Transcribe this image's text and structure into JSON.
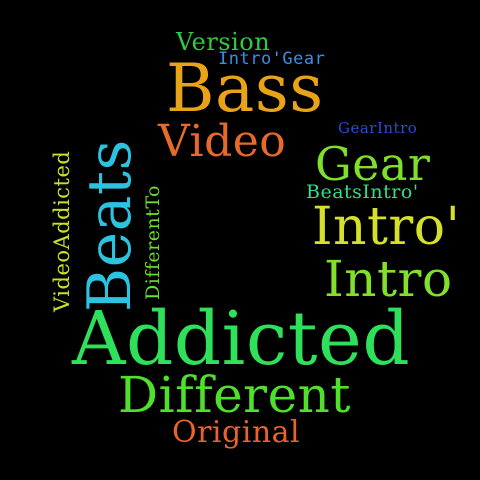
{
  "cloud": {
    "words": {
      "version": {
        "text": "Version",
        "color": "#2ecc40"
      },
      "intro_gear": {
        "text": "Intro'Gear",
        "color": "#3a8ee6"
      },
      "bass": {
        "text": "Bass",
        "color": "#e8a317"
      },
      "gear_intro": {
        "text": "GearIntro",
        "color": "#2a4bd7"
      },
      "video": {
        "text": "Video",
        "color": "#e86a2a"
      },
      "gear": {
        "text": "Gear",
        "color": "#7ee02a"
      },
      "beats_intro": {
        "text": "BeatsIntro'",
        "color": "#2ee08a"
      },
      "intro_apos": {
        "text": "Intro'",
        "color": "#d6e02a"
      },
      "intro": {
        "text": "Intro",
        "color": "#82e02a"
      },
      "addicted": {
        "text": "Addicted",
        "color": "#2ee05a"
      },
      "different": {
        "text": "Different",
        "color": "#4ee02a"
      },
      "original": {
        "text": "Original",
        "color": "#e8642a"
      },
      "beats": {
        "text": "Beats",
        "color": "#2ac4e0"
      },
      "video_addicted": {
        "text": "VideoAddicted",
        "color": "#c8e02a"
      },
      "different_to": {
        "text": "DifferentTo",
        "color": "#6ae02a"
      }
    }
  }
}
